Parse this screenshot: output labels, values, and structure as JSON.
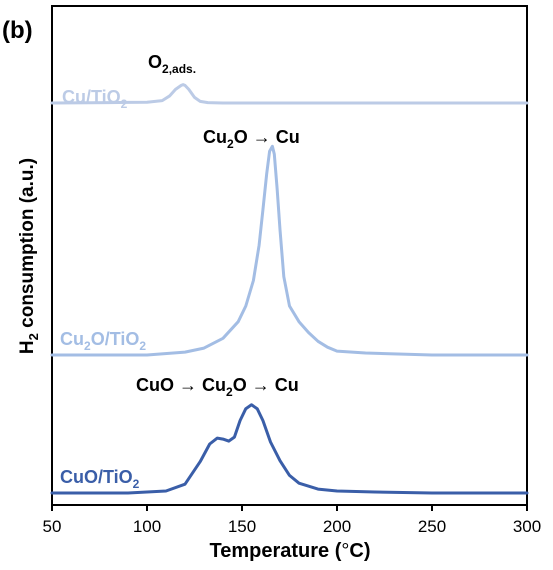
{
  "panel_label": "(b)",
  "chart_data": {
    "type": "line",
    "xlabel": "Temperature (°C)",
    "ylabel": "H2 consumption (a.u.)",
    "xlim": [
      50,
      300
    ],
    "xticks": [
      50,
      100,
      150,
      200,
      250,
      300
    ],
    "y_units": "arbitrary (stacked offsets)",
    "grid": false,
    "series": [
      {
        "name": "Cu/TiO2",
        "color": "#bccbe6",
        "x": [
          50,
          80,
          100,
          108,
          112,
          115,
          118,
          119,
          120,
          122,
          125,
          128,
          132,
          140,
          160,
          200,
          250,
          300
        ],
        "y": [
          0.0,
          0.005,
          0.01,
          0.03,
          0.09,
          0.17,
          0.22,
          0.23,
          0.22,
          0.17,
          0.07,
          0.02,
          0.005,
          0.0,
          0.0,
          0.0,
          0.0,
          0.0
        ]
      },
      {
        "name": "Cu2O/TiO2",
        "color": "#a3bde4",
        "x": [
          50,
          100,
          120,
          130,
          140,
          148,
          152,
          156,
          159,
          161,
          163,
          164.5,
          166,
          167,
          168.5,
          170,
          172,
          175,
          180,
          185,
          190,
          195,
          200,
          215,
          250,
          300
        ],
        "y": [
          0.0,
          0.0,
          0.03,
          0.07,
          0.17,
          0.34,
          0.5,
          0.76,
          1.12,
          1.48,
          1.85,
          2.08,
          2.13,
          2.05,
          1.7,
          1.28,
          0.8,
          0.5,
          0.34,
          0.23,
          0.14,
          0.08,
          0.04,
          0.02,
          0.0,
          0.0
        ]
      },
      {
        "name": "CuO/TiO2",
        "color": "#3a5ea8",
        "x": [
          50,
          90,
          110,
          120,
          128,
          133,
          137,
          140,
          143,
          146,
          149,
          152,
          155,
          158,
          161,
          165,
          170,
          175,
          180,
          190,
          200,
          220,
          250,
          300
        ],
        "y": [
          0.0,
          0.0,
          0.02,
          0.09,
          0.32,
          0.5,
          0.56,
          0.55,
          0.53,
          0.57,
          0.74,
          0.86,
          0.9,
          0.86,
          0.74,
          0.52,
          0.33,
          0.18,
          0.1,
          0.04,
          0.02,
          0.01,
          0.0,
          0.0
        ]
      }
    ],
    "annotations": [
      {
        "text": "O2,ads.",
        "x": 120
      },
      {
        "text": "Cu2O → Cu",
        "x": 166
      },
      {
        "text": "CuO → Cu2O → Cu",
        "x": 155
      }
    ]
  }
}
